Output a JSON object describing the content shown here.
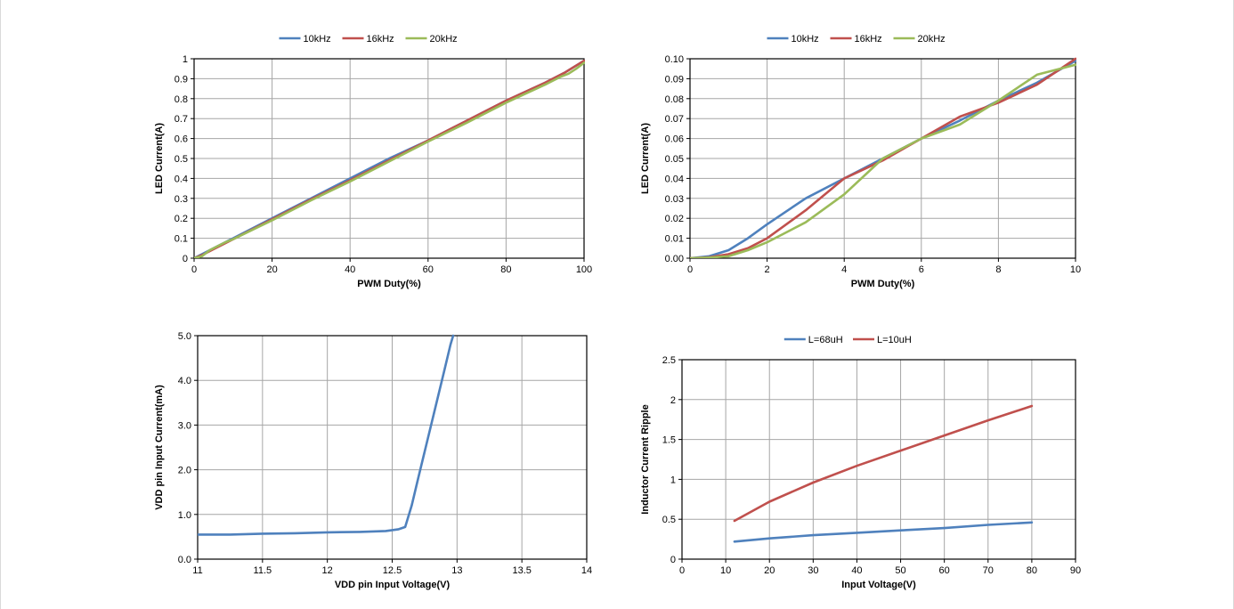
{
  "colors": {
    "blue": "#4f81bd",
    "red": "#c0504d",
    "green": "#9bbb59",
    "grid": "#a6a6a6",
    "axis": "#000000"
  },
  "chart_data": [
    {
      "id": "c1",
      "type": "line",
      "title": "",
      "xlabel": "PWM Duty(%)",
      "ylabel": "LED Current(A)",
      "xlim": [
        0,
        100
      ],
      "ylim": [
        0,
        1
      ],
      "xticks": [
        0,
        20,
        40,
        60,
        80,
        100
      ],
      "xtick_labels": [
        "0",
        "20",
        "40",
        "60",
        "80",
        "100"
      ],
      "yticks": [
        0,
        0.1,
        0.2,
        0.3,
        0.4,
        0.5,
        0.6,
        0.7,
        0.8,
        0.9,
        1
      ],
      "ytick_labels": [
        "0",
        "0.1",
        "0.2",
        "0.3",
        "0.4",
        "0.5",
        "0.6",
        "0.7",
        "0.8",
        "0.9",
        "1"
      ],
      "xgrid": [
        0,
        20,
        40,
        60,
        80,
        100
      ],
      "ygrid": [
        0,
        0.1,
        0.2,
        0.3,
        0.4,
        0.5,
        0.6,
        0.7,
        0.8,
        0.9,
        1
      ],
      "legend": "top",
      "series": [
        {
          "name": "10kHz",
          "color": "#4f81bd",
          "points": [
            [
              0,
              0
            ],
            [
              2,
              0.02
            ],
            [
              5,
              0.05
            ],
            [
              10,
              0.1
            ],
            [
              20,
              0.2
            ],
            [
              30,
              0.3
            ],
            [
              40,
              0.4
            ],
            [
              50,
              0.5
            ],
            [
              60,
              0.59
            ],
            [
              70,
              0.69
            ],
            [
              80,
              0.79
            ],
            [
              90,
              0.88
            ],
            [
              95,
              0.93
            ],
            [
              100,
              0.99
            ]
          ]
        },
        {
          "name": "16kHz",
          "color": "#c0504d",
          "points": [
            [
              0,
              0
            ],
            [
              2,
              0.015
            ],
            [
              5,
              0.045
            ],
            [
              10,
              0.095
            ],
            [
              20,
              0.195
            ],
            [
              30,
              0.295
            ],
            [
              40,
              0.39
            ],
            [
              50,
              0.49
            ],
            [
              60,
              0.59
            ],
            [
              70,
              0.69
            ],
            [
              80,
              0.79
            ],
            [
              90,
              0.88
            ],
            [
              95,
              0.93
            ],
            [
              100,
              0.99
            ]
          ]
        },
        {
          "name": "20kHz",
          "color": "#9bbb59",
          "points": [
            [
              0,
              0
            ],
            [
              2,
              0.01
            ],
            [
              4,
              0.04
            ],
            [
              8,
              0.08
            ],
            [
              10,
              0.095
            ],
            [
              20,
              0.19
            ],
            [
              30,
              0.29
            ],
            [
              40,
              0.385
            ],
            [
              50,
              0.485
            ],
            [
              60,
              0.585
            ],
            [
              70,
              0.68
            ],
            [
              80,
              0.78
            ],
            [
              90,
              0.87
            ],
            [
              92,
              0.89
            ],
            [
              94,
              0.91
            ],
            [
              96,
              0.925
            ],
            [
              98,
              0.95
            ],
            [
              100,
              0.98
            ]
          ]
        }
      ]
    },
    {
      "id": "c2",
      "type": "line",
      "title": "",
      "xlabel": "PWM Duty(%)",
      "ylabel": "LED Current(A)",
      "xlim": [
        0,
        10
      ],
      "ylim": [
        0,
        0.1
      ],
      "xticks": [
        0,
        2,
        4,
        6,
        8,
        10
      ],
      "xtick_labels": [
        "0",
        "2",
        "4",
        "6",
        "8",
        "10"
      ],
      "yticks": [
        0,
        0.01,
        0.02,
        0.03,
        0.04,
        0.05,
        0.06,
        0.07,
        0.08,
        0.09,
        0.1
      ],
      "ytick_labels": [
        "0.00",
        "0.01",
        "0.02",
        "0.03",
        "0.04",
        "0.05",
        "0.06",
        "0.07",
        "0.08",
        "0.09",
        "0.10"
      ],
      "xgrid": [
        0,
        2,
        4,
        6,
        8,
        10
      ],
      "ygrid": [
        0,
        0.01,
        0.02,
        0.03,
        0.04,
        0.05,
        0.06,
        0.07,
        0.08,
        0.09,
        0.1
      ],
      "legend": "top",
      "series": [
        {
          "name": "10kHz",
          "color": "#4f81bd",
          "points": [
            [
              0,
              0
            ],
            [
              0.5,
              0.001
            ],
            [
              1,
              0.004
            ],
            [
              1.5,
              0.01
            ],
            [
              2,
              0.017
            ],
            [
              3,
              0.03
            ],
            [
              4,
              0.04
            ],
            [
              5,
              0.05
            ],
            [
              6,
              0.06
            ],
            [
              7,
              0.069
            ],
            [
              8,
              0.079
            ],
            [
              9,
              0.088
            ],
            [
              10,
              0.099
            ]
          ]
        },
        {
          "name": "16kHz",
          "color": "#c0504d",
          "points": [
            [
              0,
              0
            ],
            [
              0.5,
              0.0005
            ],
            [
              1,
              0.002
            ],
            [
              1.5,
              0.005
            ],
            [
              2,
              0.01
            ],
            [
              3,
              0.024
            ],
            [
              4,
              0.04
            ],
            [
              5,
              0.049
            ],
            [
              6,
              0.06
            ],
            [
              7,
              0.071
            ],
            [
              8,
              0.078
            ],
            [
              9,
              0.087
            ],
            [
              10,
              0.1
            ]
          ]
        },
        {
          "name": "20kHz",
          "color": "#9bbb59",
          "points": [
            [
              0,
              0
            ],
            [
              0.5,
              0.0003
            ],
            [
              1,
              0.001
            ],
            [
              1.5,
              0.004
            ],
            [
              2,
              0.008
            ],
            [
              3,
              0.018
            ],
            [
              4,
              0.032
            ],
            [
              5,
              0.05
            ],
            [
              6,
              0.06
            ],
            [
              7,
              0.067
            ],
            [
              8,
              0.079
            ],
            [
              9,
              0.092
            ],
            [
              10,
              0.097
            ]
          ]
        }
      ]
    },
    {
      "id": "c3",
      "type": "line",
      "title": "",
      "xlabel": "VDD pin Input Voltage(V)",
      "ylabel": "VDD pin Input Current(mA)",
      "xlim": [
        11,
        14
      ],
      "ylim": [
        0,
        5
      ],
      "xticks": [
        11,
        11.5,
        12,
        12.5,
        13,
        13.5,
        14
      ],
      "xtick_labels": [
        "11",
        "11.5",
        "12",
        "12.5",
        "13",
        "13.5",
        "14"
      ],
      "yticks": [
        0,
        1,
        2,
        3,
        4,
        5
      ],
      "ytick_labels": [
        "0.0",
        "1.0",
        "2.0",
        "3.0",
        "4.0",
        "5.0"
      ],
      "xgrid": [
        11,
        11.5,
        12,
        12.5,
        13,
        13.5,
        14
      ],
      "ygrid": [
        0,
        1,
        2,
        3,
        4,
        5
      ],
      "legend": "none",
      "series": [
        {
          "name": "",
          "color": "#4f81bd",
          "points": [
            [
              11,
              0.55
            ],
            [
              11.25,
              0.55
            ],
            [
              11.5,
              0.57
            ],
            [
              11.75,
              0.58
            ],
            [
              12,
              0.6
            ],
            [
              12.25,
              0.61
            ],
            [
              12.45,
              0.63
            ],
            [
              12.55,
              0.67
            ],
            [
              12.6,
              0.72
            ],
            [
              12.65,
              1.2
            ],
            [
              12.7,
              1.8
            ],
            [
              12.75,
              2.4
            ],
            [
              12.8,
              3.0
            ],
            [
              12.85,
              3.6
            ],
            [
              12.9,
              4.2
            ],
            [
              12.95,
              4.8
            ],
            [
              12.97,
              5.0
            ]
          ]
        }
      ]
    },
    {
      "id": "c4",
      "type": "line",
      "title": "",
      "xlabel": "Input Voltage(V)",
      "ylabel": "Inductor Current Ripple",
      "xlim": [
        0,
        90
      ],
      "ylim": [
        0,
        2.5
      ],
      "xticks": [
        0,
        10,
        20,
        30,
        40,
        50,
        60,
        70,
        80,
        90
      ],
      "xtick_labels": [
        "0",
        "10",
        "20",
        "30",
        "40",
        "50",
        "60",
        "70",
        "80",
        "90"
      ],
      "yticks": [
        0,
        0.5,
        1,
        1.5,
        2,
        2.5
      ],
      "ytick_labels": [
        "0",
        "0.5",
        "1",
        "1.5",
        "2",
        "2.5"
      ],
      "xgrid": [
        0,
        10,
        20,
        30,
        40,
        50,
        60,
        70,
        80,
        90
      ],
      "ygrid": [
        0,
        0.5,
        1,
        1.5,
        2,
        2.5
      ],
      "legend": "top",
      "series": [
        {
          "name": "L=68uH",
          "color": "#4f81bd",
          "points": [
            [
              12,
              0.22
            ],
            [
              20,
              0.26
            ],
            [
              30,
              0.3
            ],
            [
              40,
              0.33
            ],
            [
              50,
              0.36
            ],
            [
              60,
              0.39
            ],
            [
              70,
              0.43
            ],
            [
              80,
              0.46
            ]
          ]
        },
        {
          "name": "L=10uH",
          "color": "#c0504d",
          "points": [
            [
              12,
              0.48
            ],
            [
              20,
              0.72
            ],
            [
              30,
              0.96
            ],
            [
              40,
              1.17
            ],
            [
              50,
              1.36
            ],
            [
              60,
              1.55
            ],
            [
              70,
              1.74
            ],
            [
              80,
              1.92
            ]
          ]
        }
      ]
    }
  ]
}
